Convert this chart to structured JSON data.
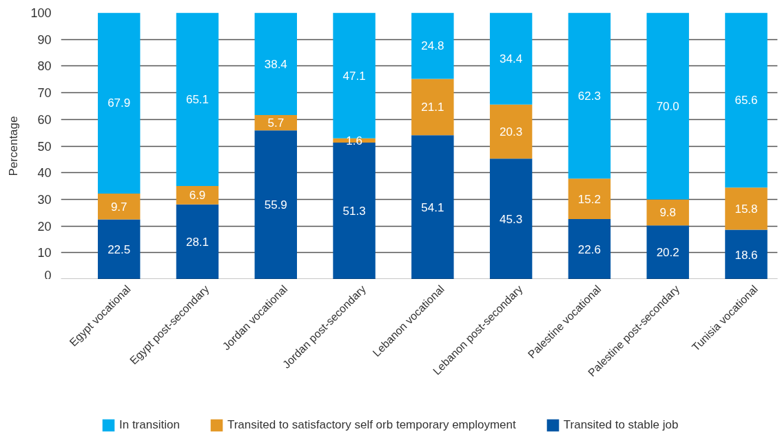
{
  "chart_data": {
    "type": "bar",
    "stacked": true,
    "ylabel": "Percentage",
    "categories": [
      "Egypt vocational",
      "Egypt post-secondary",
      "Jordan vocational",
      "Jordan post-secondary",
      "Lebanon vocational",
      "Lebanon post-secondary",
      "Palestine vocational",
      "Palestine post-secondary",
      "Tunisia vocational"
    ],
    "series": [
      {
        "name": "Transited to stable job",
        "color": "#0055a4",
        "values": [
          22.5,
          28.1,
          55.9,
          51.3,
          54.1,
          45.3,
          22.6,
          20.2,
          18.6
        ],
        "value_labels": [
          "22.5",
          "28.1",
          "55.9",
          "51.3",
          "54.1",
          "45.3",
          "22.6",
          "20.2",
          "18.6"
        ]
      },
      {
        "name": "Transited to satisfactory self orb temporary employment",
        "color": "#e39826",
        "values": [
          9.7,
          6.9,
          5.7,
          1.6,
          21.1,
          20.3,
          15.2,
          9.8,
          15.8
        ],
        "value_labels": [
          "9.7",
          "6.9",
          "5.7",
          "1.6",
          "21.1",
          "20.3",
          "15.2",
          "9.8",
          "15.8"
        ]
      },
      {
        "name": "In transition",
        "color": "#00aeef",
        "values": [
          67.9,
          65.1,
          38.4,
          47.1,
          24.8,
          34.4,
          62.3,
          70.0,
          65.6
        ],
        "value_labels": [
          "67.9",
          "65.1",
          "38.4",
          "47.1",
          "24.8",
          "34.4",
          "62.3",
          "70.0",
          "65.6"
        ]
      }
    ],
    "ylim": [
      0,
      100
    ],
    "yticks": [
      0,
      10,
      20,
      30,
      40,
      50,
      60,
      70,
      80,
      90,
      100
    ],
    "grid": "y",
    "legend": "bottom"
  }
}
